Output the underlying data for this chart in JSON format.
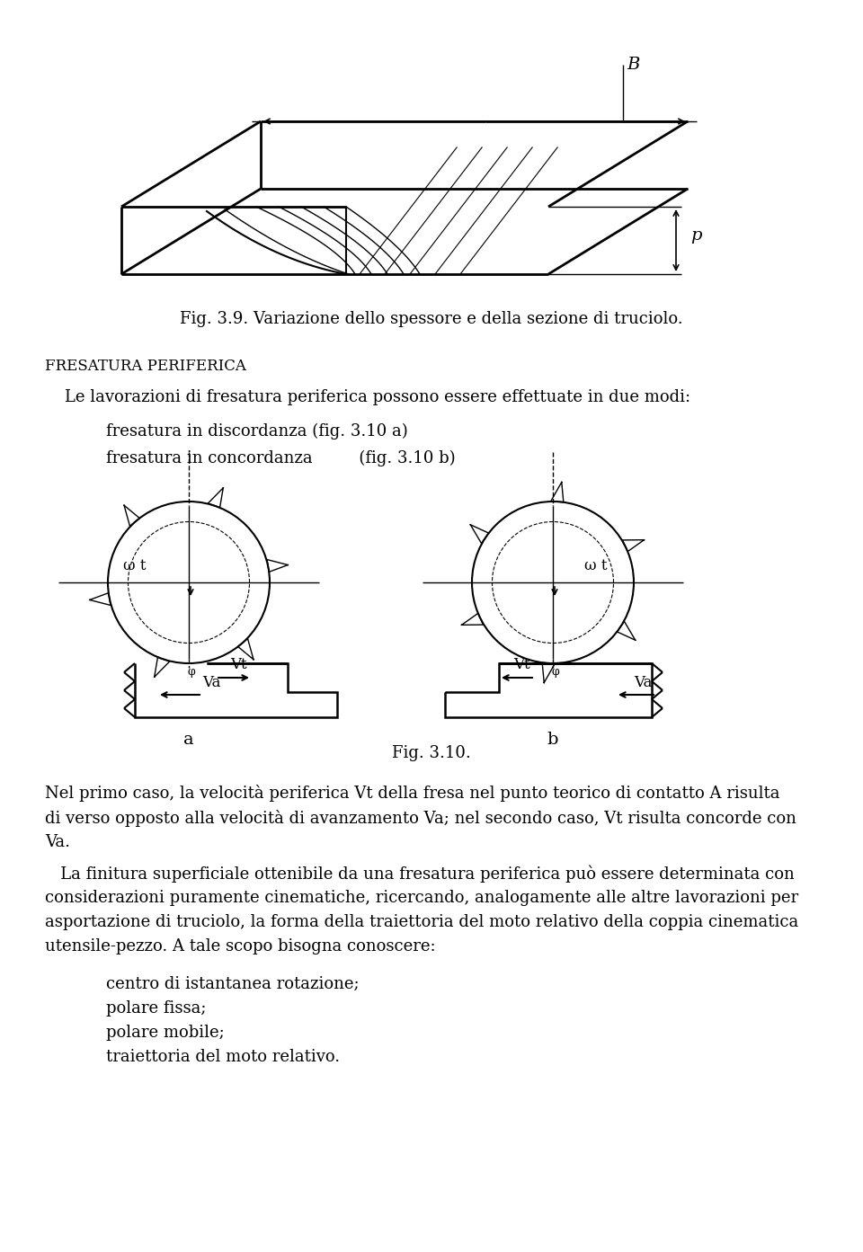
{
  "fig_caption_39": "Fig. 3.9. Variazione dello spessore e della sezione di truciolo.",
  "section_title": "FRESATURA PERIFERICA",
  "para1": "Le lavorazioni di fresatura periferica possono essere effettuate in due modi:",
  "bullet1": "fresatura in discordanza (fig. 3.10 a)",
  "bullet2": "fresatura in concordanza         (fig. 3.10 b)",
  "fig_caption_310": "Fig. 3.10.",
  "para2_1": "Nel primo caso, la velocità periferica Vt della fresa nel punto teorico di contatto A risulta",
  "para2_2": "di verso opposto alla velocità di avanzamento Va; nel secondo caso, Vt risulta concorde con",
  "para2_3": "Va.",
  "para3_1": "   La finitura superficiale ottenibile da una fresatura periferica può essere determinata con",
  "para3_2": "considerazioni puramente cinematiche, ricercando, analogamente alle altre lavorazioni per",
  "para3_3": "asportazione di truciolo, la forma della traiettoria del moto relativo della coppia cinematica",
  "para3_4": "utensile-pezzo. A tale scopo bisogna conoscere:",
  "list_items": [
    "centro di istantanea rotazione;",
    "polare fissa;",
    "polare mobile;",
    "traiettoria del moto relativo."
  ],
  "label_B": "B",
  "label_p": "p",
  "label_omega_t": "ω t",
  "label_Vt": "Vt",
  "label_Va": "Va",
  "label_a": "a",
  "label_b": "b",
  "bg_color": "#ffffff",
  "text_color": "#000000",
  "line_color": "#000000"
}
